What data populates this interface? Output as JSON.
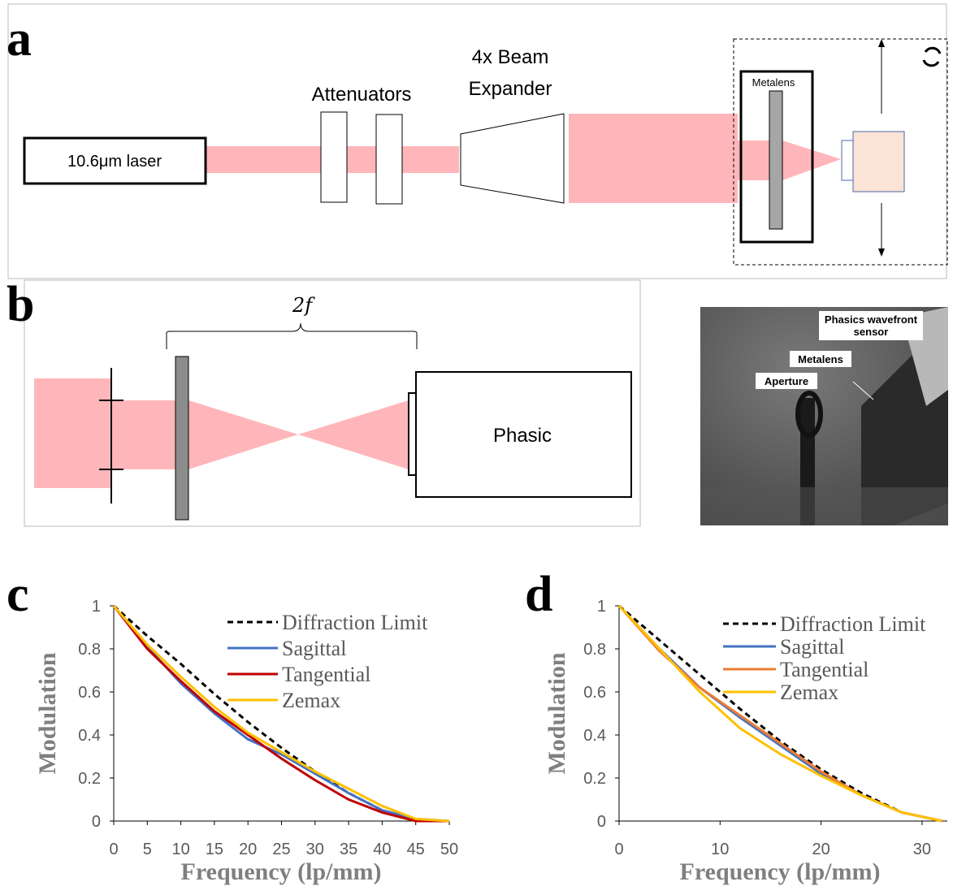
{
  "panel_labels": [
    "a",
    "b",
    "c",
    "d"
  ],
  "setup_a": {
    "laser": "10.6μm laser",
    "attenuators": "Attenuators",
    "expander": [
      "4x Beam",
      "Expander"
    ],
    "metalens": "Metalens"
  },
  "setup_b": {
    "distance": "2f",
    "detector": "Phasic"
  },
  "photo": {
    "sensor": [
      "Phasics wavefront",
      "sensor"
    ],
    "metalens": "Metalens",
    "aperture": "Aperture"
  },
  "chart_data": [
    {
      "type": "line",
      "x_label": "Frequency (lp/mm)",
      "y_label": "Modulation",
      "x": [
        0,
        5,
        10,
        15,
        20,
        25,
        30,
        35,
        40,
        45,
        50
      ],
      "xlim": [
        0,
        50
      ],
      "ylim": [
        0,
        1
      ],
      "xticks": [
        0,
        5,
        10,
        15,
        20,
        25,
        30,
        35,
        40,
        45,
        50
      ],
      "yticks": [
        0,
        0.2,
        0.4,
        0.6,
        0.8,
        1
      ],
      "series": [
        {
          "name": "Diffraction Limit",
          "color": "#000000",
          "dashed": true,
          "values": [
            1,
            0.86,
            0.73,
            0.59,
            0.46,
            0.34,
            0.23,
            0.13,
            0.05,
            0.004,
            0
          ]
        },
        {
          "name": "Sagittal",
          "color": "#4472c4",
          "values": [
            1,
            0.81,
            0.64,
            0.5,
            0.38,
            0.31,
            0.22,
            0.13,
            0.05,
            0.01,
            0
          ]
        },
        {
          "name": "Tangential",
          "color": "#c00000",
          "values": [
            1,
            0.8,
            0.65,
            0.51,
            0.4,
            0.29,
            0.19,
            0.1,
            0.04,
            0,
            0
          ]
        },
        {
          "name": "Zemax",
          "color": "#ffc000",
          "values": [
            1,
            0.82,
            0.67,
            0.53,
            0.41,
            0.32,
            0.23,
            0.15,
            0.07,
            0.01,
            0
          ]
        }
      ]
    },
    {
      "type": "line",
      "x_label": "Frequency (lp/mm)",
      "y_label": "Modulation",
      "x": [
        0,
        4,
        8,
        12,
        16,
        20,
        24,
        28,
        32
      ],
      "xlim": [
        0,
        32.5
      ],
      "ylim": [
        0,
        1
      ],
      "xticks": [
        0,
        10,
        20,
        30
      ],
      "yticks": [
        0,
        0.2,
        0.4,
        0.6,
        0.8,
        1
      ],
      "series": [
        {
          "name": "Diffraction Limit",
          "color": "#000000",
          "dashed": true,
          "values": [
            1,
            0.84,
            0.68,
            0.52,
            0.37,
            0.24,
            0.13,
            0.04,
            0
          ]
        },
        {
          "name": "Sagittal",
          "color": "#4472c4",
          "values": [
            1,
            0.8,
            0.62,
            0.48,
            0.35,
            0.22,
            0.12,
            0.04,
            0
          ]
        },
        {
          "name": "Tangential",
          "color": "#ed7d31",
          "values": [
            1,
            0.79,
            0.62,
            0.49,
            0.36,
            0.23,
            0.12,
            0.04,
            0
          ]
        },
        {
          "name": "Zemax",
          "color": "#ffc000",
          "values": [
            1,
            0.8,
            0.6,
            0.43,
            0.31,
            0.21,
            0.12,
            0.04,
            0
          ]
        }
      ]
    }
  ]
}
